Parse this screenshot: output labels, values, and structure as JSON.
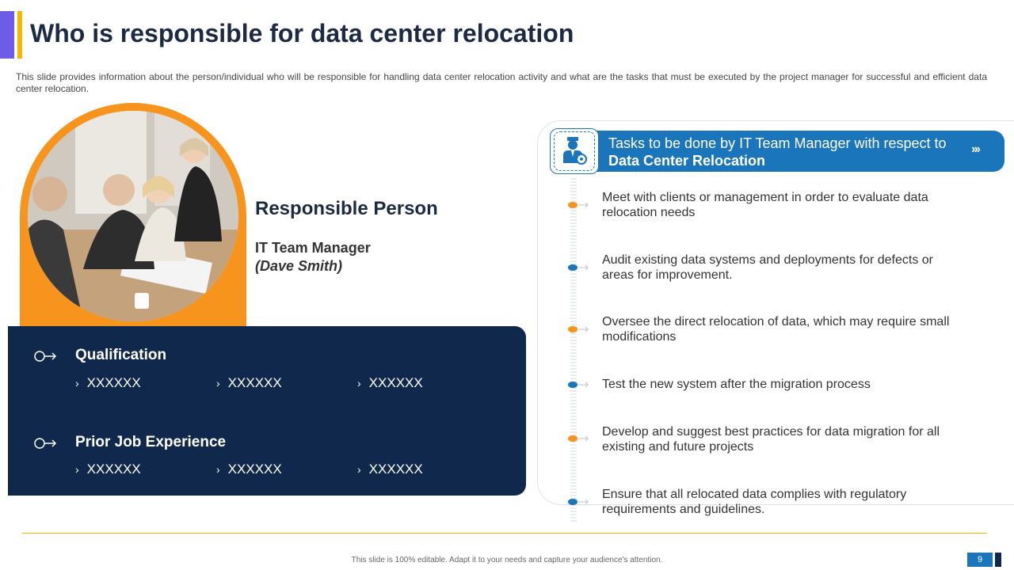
{
  "header": {
    "title": "Who is responsible for data center relocation",
    "subtitle": "This slide provides information about the person/individual who will be responsible for handling data center relocation activity and what are the tasks that must be executed by the project manager for successful and efficient data center relocation."
  },
  "person": {
    "heading": "Responsible Person",
    "role": "IT Team Manager",
    "name": "(Dave Smith)",
    "photo_icon": "meeting-photo"
  },
  "panel": {
    "sections": [
      {
        "heading": "Qualification",
        "items": [
          "XXXXXX",
          "XXXXXX",
          "XXXXXX"
        ]
      },
      {
        "heading": "Prior Job Experience",
        "items": [
          "XXXXXX",
          "XXXXXX",
          "XXXXXX"
        ]
      }
    ]
  },
  "tasks": {
    "header_line1": "Tasks to be done by IT Team Manager with respect to",
    "header_line2": "Data Center Relocation",
    "icon": "manager-gear-icon",
    "items": [
      "Meet with clients or management in order to evaluate data relocation needs",
      "Audit existing data systems and deployments for defects or areas for improvement.",
      "Oversee the direct relocation of data, which may require small modifications",
      "Test the new system after the migration process",
      "Develop and suggest best practices for data migration for all existing and future projects",
      "Ensure that all relocated data complies with regulatory requirements and guidelines."
    ],
    "dot_colors": [
      "#f7941d",
      "#1b75bb",
      "#f7941d",
      "#1b75bb",
      "#f7941d",
      "#1b75bb"
    ]
  },
  "footer": {
    "note": "This slide is 100% editable. Adapt it to your needs and capture your audience's attention.",
    "page": "9"
  },
  "colors": {
    "navy": "#10284b",
    "blue": "#1b75bb",
    "orange": "#f7941d",
    "gold": "#f5b700"
  }
}
